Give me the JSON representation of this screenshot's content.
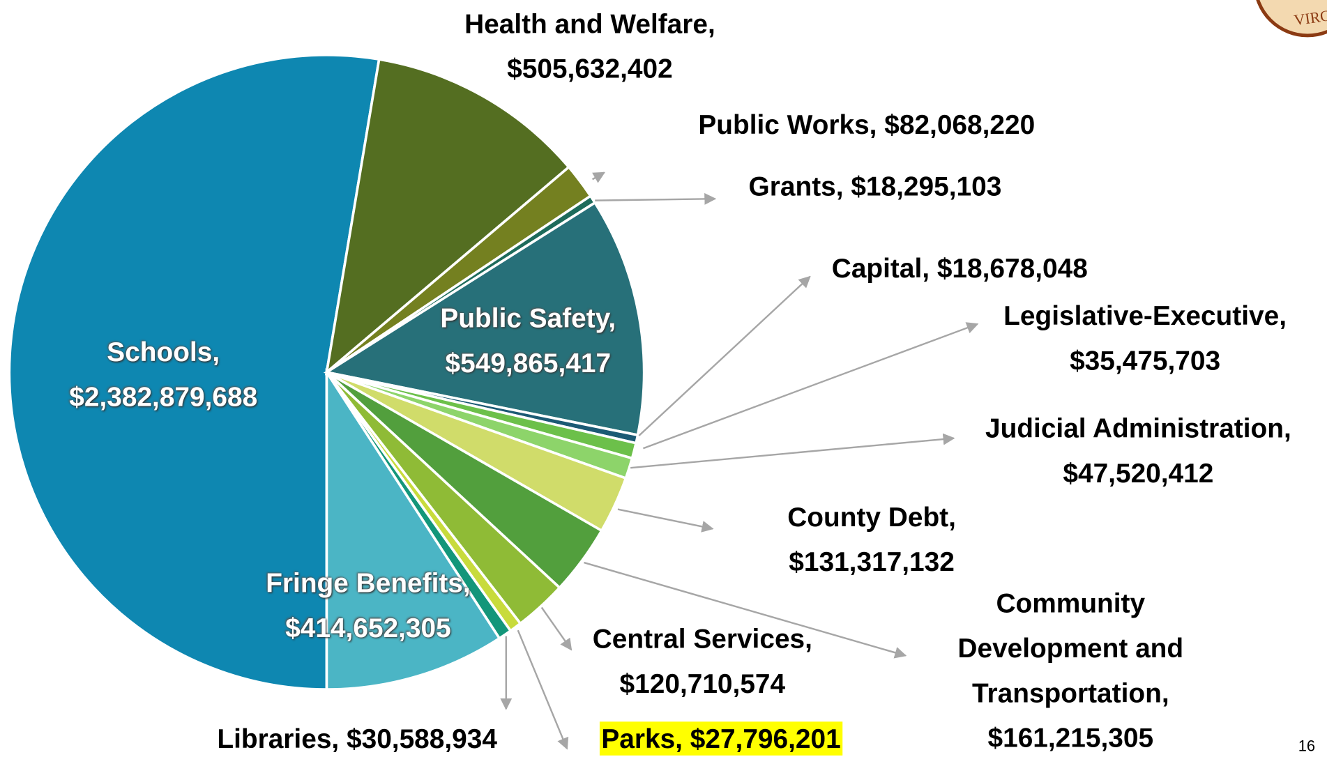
{
  "chart_data": {
    "type": "pie",
    "categories": [
      "Schools,",
      "Health and Welfare,",
      "Public Works,",
      "Grants,",
      "Public Safety,",
      "Capital,",
      "Legislative-Executive,",
      "Judicial Administration,",
      "County Debt,",
      "Community Development and Transportation,",
      "Central Services,",
      "Parks,",
      "Libraries,",
      "Fringe Benefits,"
    ],
    "values": [
      2382879688,
      505632402,
      82068220,
      18295103,
      549865417,
      18678048,
      35475703,
      47520412,
      131317132,
      161215305,
      120710574,
      27796201,
      30588934,
      414652305
    ],
    "value_labels": [
      "$2,382,879,688",
      "$505,632,402",
      "$82,068,220",
      "$18,295,103",
      "$549,865,417",
      "$18,678,048",
      "$35,475,703",
      "$47,520,412",
      "$131,317,132",
      "$161,215,305",
      "$120,710,574",
      "$27,796,201",
      "$30,588,934",
      "$414,652,305"
    ],
    "colors": [
      "#0e87b1",
      "#546e21",
      "#748020",
      "#1d6b5b",
      "#277079",
      "#1b5a74",
      "#6cc04a",
      "#8dd46a",
      "#d0dc6a",
      "#529f3d",
      "#8fbb36",
      "#c8db3c",
      "#13967a",
      "#4bb5c5"
    ]
  },
  "page_number": "16",
  "logo_text": "VIRGI"
}
